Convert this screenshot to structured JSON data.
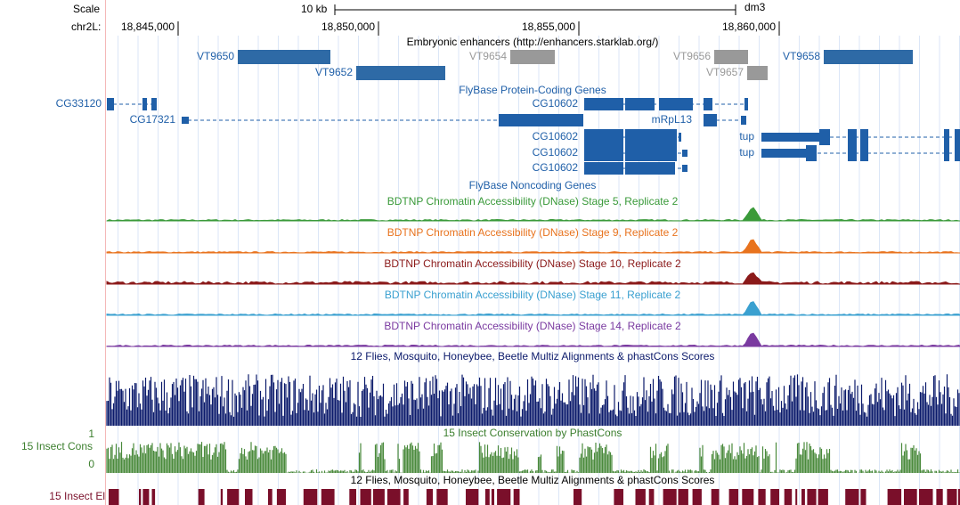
{
  "header": {
    "scale": "Scale",
    "scale_bar": "10 kb",
    "assembly": "dm3",
    "chrom": "chr2L:",
    "positions": [
      "18,845,000",
      "18,850,000",
      "18,855,000",
      "18,860,000"
    ]
  },
  "tracks": {
    "enhancers": {
      "title": "Embryonic enhancers (http://enhancers.starklab.org/)",
      "items": [
        "VT9650",
        "VT9652",
        "VT9654",
        "VT9656",
        "VT9657",
        "VT9658"
      ]
    },
    "protein_coding": {
      "title": "FlyBase Protein-Coding Genes",
      "genes": [
        "CG33120",
        "CG17321",
        "CG10602",
        "mRpL13",
        "CG10602",
        "CG10602",
        "CG10602",
        "tup",
        "tup"
      ]
    },
    "noncoding": {
      "title": "FlyBase Noncoding Genes"
    },
    "dnase": [
      "BDTNP Chromatin Accessibility (DNase) Stage 5, Replicate 2",
      "BDTNP Chromatin Accessibility (DNase) Stage 9, Replicate 2",
      "BDTNP Chromatin Accessibility (DNase) Stage 10, Replicate 2",
      "BDTNP Chromatin Accessibility (DNase) Stage 11, Replicate 2",
      "BDTNP Chromatin Accessibility (DNase) Stage 14, Replicate 2"
    ],
    "multiz": {
      "title": "12 Flies, Mosquito, Honeybee, Beetle Multiz Alignments & phastCons Scores"
    },
    "phastcons": {
      "title": "15 Insect Conservation by PhastCons",
      "label": "15 Insect Cons",
      "max": 1,
      "min": 0
    },
    "elements": {
      "title": "12 Flies, Mosquito, Honeybee, Beetle Multiz Alignments & phastCons Scores",
      "label": "15 Insect El"
    }
  }
}
